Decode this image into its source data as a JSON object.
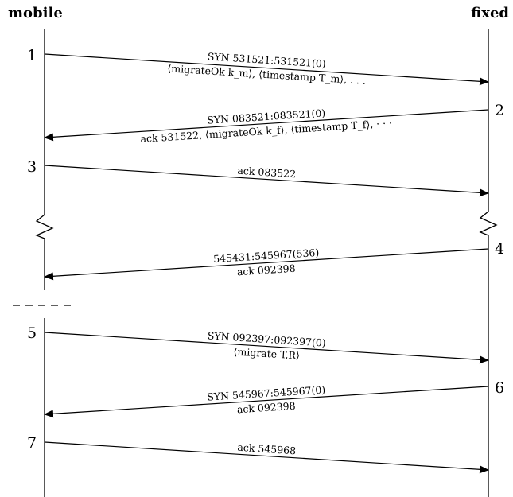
{
  "headers": {
    "left": "mobile",
    "right": "fixed"
  },
  "step_labels": [
    "1",
    "2",
    "3",
    "4",
    "5",
    "6",
    "7"
  ],
  "messages": [
    {
      "from": "mobile",
      "to": "fixed",
      "step": "1",
      "upper": "SYN 531521:531521(0)",
      "lower": "⟨migrateOk k_m⟩, ⟨timestamp T_m⟩, . . ."
    },
    {
      "from": "fixed",
      "to": "mobile",
      "step": "2",
      "upper": "SYN 083521:083521(0)",
      "lower": "ack 531522, ⟨migrateOk k_f⟩, ⟨timestamp T_f⟩, · · ·"
    },
    {
      "from": "mobile",
      "to": "fixed",
      "step": "3",
      "upper": "ack 083522",
      "lower": ""
    },
    {
      "from": "fixed",
      "to": "mobile",
      "step": "4",
      "upper": "545431:545967(536)",
      "lower": "ack 092398"
    },
    {
      "from": "mobile",
      "to": "fixed",
      "step": "5",
      "upper": "SYN 092397:092397(0)",
      "lower": "⟨migrate T,R⟩"
    },
    {
      "from": "fixed",
      "to": "mobile",
      "step": "6",
      "upper": "SYN 545967:545967(0)",
      "lower": "ack 092398"
    },
    {
      "from": "mobile",
      "to": "fixed",
      "step": "7",
      "upper": "ack 545968",
      "lower": ""
    }
  ],
  "annotations": {
    "dashed_divider": "- - - -",
    "time_break_markers": [
      "zigzag"
    ]
  }
}
